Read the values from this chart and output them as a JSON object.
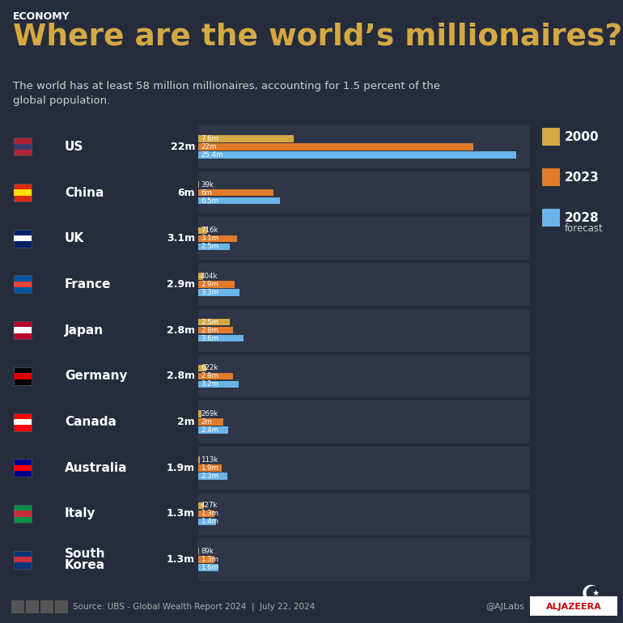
{
  "title_tag": "ECONOMY",
  "title": "Where are the world’s millionaires?",
  "subtitle": "The world has at least 58 million millionaires, accounting for 1.5 percent of the\nglobal population.",
  "background_color": "#252d3d",
  "bar_bg_color": "#2e3648",
  "title_color": "#d4a843",
  "tag_color": "#ffffff",
  "subtitle_color": "#d0d0d0",
  "source_text": "Source: UBS - Global Wealth Report 2024  |  July 22, 2024",
  "credit_text": "@AJLabs",
  "color_2000": "#d4a843",
  "color_2023": "#e07b2a",
  "color_2028": "#6ab4e8",
  "countries": [
    "US",
    "China",
    "UK",
    "France",
    "Japan",
    "Germany",
    "Canada",
    "Australia",
    "Italy",
    "South\nKorea"
  ],
  "display_values": [
    "22m",
    "6m",
    "3.1m",
    "2.9m",
    "2.8m",
    "2.8m",
    "2m",
    "1.9m",
    "1.3m",
    "1.3m"
  ],
  "values_2000": [
    7.6,
    0.039,
    0.716,
    0.404,
    2.5,
    0.622,
    0.269,
    0.113,
    0.427,
    0.089
  ],
  "values_2023": [
    22.0,
    6.0,
    3.1,
    2.9,
    2.8,
    2.8,
    2.0,
    1.9,
    1.3,
    1.3
  ],
  "values_2028": [
    25.4,
    6.5,
    2.5,
    3.3,
    3.6,
    3.2,
    2.4,
    2.3,
    1.4,
    1.6
  ],
  "labels_2000": [
    "7.6m",
    "39k",
    "716k",
    "404k",
    "2.5m",
    "622k",
    "269k",
    "113k",
    "427k",
    "89k"
  ],
  "labels_2023": [
    "22m",
    "6m",
    "3.1m",
    "2.9m",
    "2.8m",
    "2.8m",
    "2m",
    "1.9m",
    "1.3m",
    "1.3m"
  ],
  "labels_2028": [
    "25.4m",
    "6.5m",
    "2.5m",
    "3.3m",
    "3.6m",
    "3.2m",
    "2.4m",
    "2.3m",
    "1.4m",
    "1.6m"
  ],
  "max_value": 26.5,
  "legend_items": [
    {
      "label": "2000",
      "color": "#d4a843"
    },
    {
      "label": "2023",
      "color": "#e07b2a"
    },
    {
      "label": "2028\nforecast",
      "color": "#6ab4e8"
    }
  ]
}
